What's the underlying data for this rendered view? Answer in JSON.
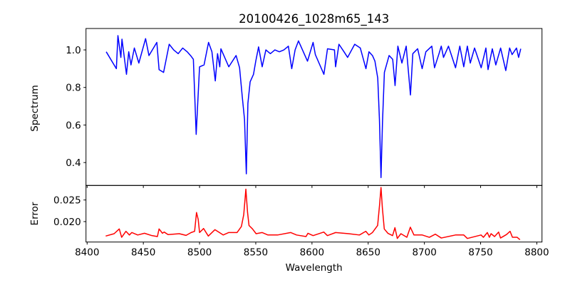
{
  "chart_data": [
    {
      "type": "line",
      "title": "20100426_1028m65_143",
      "xlabel": "",
      "ylabel": "Spectrum",
      "xlim": [
        8399,
        8804.6
      ],
      "ylim": [
        0.278,
        1.114
      ],
      "xticks": [
        8400,
        8450,
        8500,
        8550,
        8600,
        8650,
        8700,
        8750,
        8800
      ],
      "yticks": [
        0.4,
        0.6,
        0.8,
        1.0
      ],
      "ytick_labels": [
        "0.4",
        "0.6",
        "0.8",
        "1.0"
      ],
      "grid": false,
      "series": [
        {
          "name": "Spectrum",
          "color": "#0000ff",
          "x": [
            8417,
            8426,
            8427.4,
            8430,
            8431,
            8435,
            8437,
            8439,
            8442,
            8446,
            8452,
            8455,
            8462,
            8464,
            8468,
            8473,
            8477,
            8481,
            8485,
            8489,
            8492,
            8494.5,
            8497,
            8500,
            8504,
            8508,
            8511,
            8514,
            8516,
            8518,
            8519,
            8526,
            8532.5,
            8535.6,
            8538,
            8540,
            8541.6,
            8543,
            8545,
            8548,
            8550,
            8552.5,
            8555.7,
            8559,
            8563,
            8567,
            8571,
            8575,
            8579,
            8582,
            8585,
            8588,
            8596,
            8601,
            8603,
            8610.6,
            8613.8,
            8620,
            8621,
            8624,
            8628.5,
            8631.7,
            8638,
            8643,
            8648,
            8650.7,
            8653.8,
            8656,
            8658.5,
            8660,
            8661.4,
            8662.7,
            8664.4,
            8668.6,
            8671.8,
            8673.9,
            8676.4,
            8680,
            8683.8,
            8687.6,
            8689.7,
            8694,
            8698,
            8701.3,
            8706.6,
            8709,
            8713,
            8715,
            8717,
            8721.4,
            8727.7,
            8731.5,
            8735,
            8738.2,
            8740.8,
            8744.6,
            8750.5,
            8754.7,
            8756.6,
            8760.4,
            8763.5,
            8767.8,
            8772.4,
            8775.8,
            8778,
            8781.9,
            8783.8,
            8785.7
          ],
          "y": [
            0.99,
            0.9,
            1.076,
            0.96,
            1.057,
            0.87,
            0.99,
            0.92,
            1.01,
            0.93,
            1.06,
            0.97,
            1.04,
            0.895,
            0.88,
            1.03,
            1.0,
            0.98,
            1.01,
            0.99,
            0.97,
            0.95,
            0.55,
            0.91,
            0.92,
            1.04,
            0.99,
            0.835,
            0.98,
            0.91,
            1.006,
            0.91,
            0.97,
            0.905,
            0.75,
            0.63,
            0.34,
            0.715,
            0.83,
            0.87,
            0.94,
            1.016,
            0.91,
            1.0,
            0.98,
            1.0,
            0.99,
            1.0,
            1.02,
            0.9,
            1.0,
            1.048,
            0.94,
            1.04,
            0.975,
            0.87,
            1.006,
            1.0,
            0.91,
            1.03,
            0.99,
            0.96,
            1.03,
            1.01,
            0.9,
            0.99,
            0.97,
            0.94,
            0.85,
            0.63,
            0.32,
            0.61,
            0.88,
            0.97,
            0.95,
            0.81,
            1.02,
            0.93,
            1.02,
            0.76,
            0.98,
            1.006,
            0.9,
            0.99,
            1.02,
            0.905,
            0.98,
            1.02,
            0.96,
            1.02,
            0.905,
            1.02,
            0.91,
            1.02,
            0.93,
            1.01,
            0.905,
            1.01,
            0.895,
            1.006,
            0.92,
            1.01,
            0.89,
            1.01,
            0.975,
            1.01,
            0.96,
            1.006
          ]
        }
      ]
    },
    {
      "type": "line",
      "title": "",
      "xlabel": "Wavelength",
      "ylabel": "Error",
      "xlim": [
        8399,
        8804.6
      ],
      "ylim": [
        0.01527,
        0.02836
      ],
      "xticks": [
        8400,
        8450,
        8500,
        8550,
        8600,
        8650,
        8700,
        8750,
        8800
      ],
      "xtick_labels": [
        "8400",
        "8450",
        "8500",
        "8550",
        "8600",
        "8650",
        "8700",
        "8750",
        "8800"
      ],
      "yticks": [
        0.02,
        0.025
      ],
      "ytick_labels": [
        "0.020",
        "0.025"
      ],
      "grid": false,
      "series": [
        {
          "name": "Error",
          "color": "#ff0000",
          "x": [
            8416.5,
            8424,
            8428.6,
            8430.7,
            8434.5,
            8437.6,
            8439.7,
            8445,
            8451,
            8457.6,
            8462.5,
            8464,
            8467,
            8468.5,
            8472,
            8482,
            8488,
            8492.5,
            8495.6,
            8497.3,
            8498.8,
            8500,
            8503.6,
            8507.8,
            8513.7,
            8517.7,
            8521,
            8526,
            8533.4,
            8537.2,
            8539.3,
            8541.2,
            8542.7,
            8544,
            8547.1,
            8550.3,
            8555.6,
            8560.8,
            8569.4,
            8581,
            8586.3,
            8594.7,
            8596.4,
            8601,
            8610.5,
            8613.7,
            8621,
            8632.7,
            8642.2,
            8647.9,
            8650.6,
            8653.8,
            8658.4,
            8660.1,
            8661.4,
            8662.6,
            8664.3,
            8667.5,
            8671.7,
            8673.8,
            8675.9,
            8679.1,
            8684.4,
            8687.5,
            8690.7,
            8698.1,
            8704.4,
            8709.7,
            8715,
            8727.6,
            8735,
            8738.2,
            8750.4,
            8752.5,
            8756,
            8757.8,
            8759.3,
            8762.4,
            8766,
            8767.7,
            8773,
            8776.2,
            8778.3,
            8782.5,
            8785
          ],
          "y": [
            0.01665,
            0.0172,
            0.0183,
            0.01637,
            0.01775,
            0.0169,
            0.01747,
            0.0169,
            0.0173,
            0.01676,
            0.01654,
            0.0183,
            0.0173,
            0.01758,
            0.017,
            0.0172,
            0.01681,
            0.01747,
            0.01775,
            0.0221,
            0.0205,
            0.01747,
            0.0184,
            0.01665,
            0.01813,
            0.01747,
            0.0169,
            0.01747,
            0.01747,
            0.01885,
            0.0216,
            0.0275,
            0.0221,
            0.0191,
            0.0183,
            0.0172,
            0.01747,
            0.0169,
            0.0169,
            0.01747,
            0.0169,
            0.01654,
            0.0173,
            0.01676,
            0.01758,
            0.01676,
            0.01747,
            0.0172,
            0.0169,
            0.01775,
            0.0169,
            0.01747,
            0.0191,
            0.0238,
            0.0279,
            0.0232,
            0.0183,
            0.0173,
            0.01676,
            0.0186,
            0.0161,
            0.0172,
            0.01637,
            0.0187,
            0.0169,
            0.0169,
            0.01637,
            0.01709,
            0.0162,
            0.0169,
            0.0169,
            0.0161,
            0.0169,
            0.01637,
            0.01747,
            0.01637,
            0.0172,
            0.01654,
            0.01758,
            0.0162,
            0.017,
            0.01775,
            0.01637,
            0.01637,
            0.0158
          ]
        }
      ]
    }
  ]
}
